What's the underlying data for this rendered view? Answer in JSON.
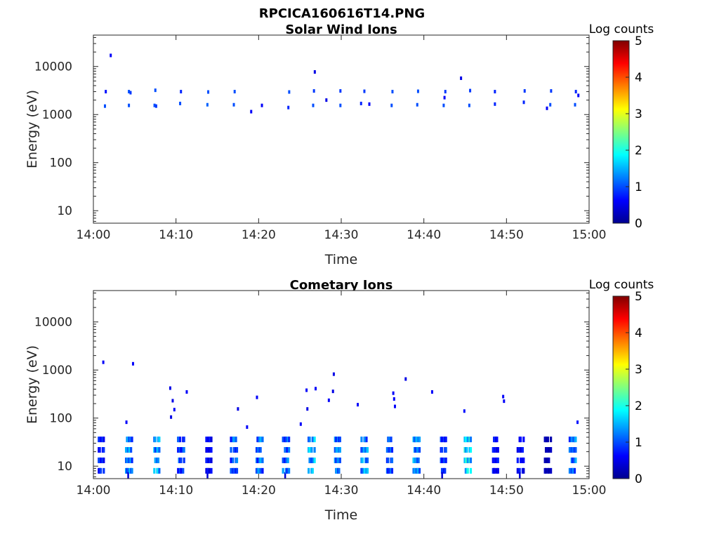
{
  "figure": {
    "title": "RPCICA160616T14.PNG"
  },
  "chart_data": [
    {
      "type": "heatmap",
      "title": "Solar Wind Ions",
      "xlabel": "Time",
      "ylabel": "Energy (eV)",
      "x_tick_labels": [
        "14:00",
        "14:10",
        "14:20",
        "14:30",
        "14:40",
        "14:50",
        "15:00"
      ],
      "x_range_minutes": [
        0,
        60
      ],
      "y_scale": "log",
      "y_range": [
        5.5,
        45000
      ],
      "y_ticks": [
        10,
        100,
        1000,
        10000
      ],
      "y_tick_labels": [
        "10",
        "100",
        "1000",
        "10000"
      ],
      "colorbar": {
        "label": "Log counts",
        "range": [
          0,
          5
        ],
        "tick_labels": [
          "0",
          "1",
          "2",
          "3",
          "4",
          "5"
        ],
        "colormap": "jet"
      },
      "points": [
        [
          1.4,
          1500,
          1
        ],
        [
          1.5,
          3000,
          0.7
        ],
        [
          2.1,
          17000,
          0.6
        ],
        [
          4.3,
          1550,
          1
        ],
        [
          4.3,
          3000,
          1
        ],
        [
          4.5,
          2850,
          0.9
        ],
        [
          7.4,
          1550,
          1
        ],
        [
          7.5,
          3200,
          1
        ],
        [
          7.6,
          1500,
          0.9
        ],
        [
          10.5,
          1700,
          1
        ],
        [
          10.6,
          3000,
          0.8
        ],
        [
          13.8,
          1600,
          1.1
        ],
        [
          13.9,
          2950,
          1
        ],
        [
          17.0,
          1600,
          1
        ],
        [
          17.1,
          3000,
          1
        ],
        [
          19.1,
          1150,
          0.6
        ],
        [
          20.4,
          1550,
          0.6
        ],
        [
          23.6,
          1400,
          0.8
        ],
        [
          23.7,
          2950,
          1
        ],
        [
          26.6,
          1550,
          1
        ],
        [
          26.7,
          3100,
          0.9
        ],
        [
          26.8,
          7700,
          0.5
        ],
        [
          28.2,
          2000,
          0.5
        ],
        [
          29.9,
          1550,
          1
        ],
        [
          29.9,
          3100,
          0.9
        ],
        [
          32.4,
          1700,
          0.8
        ],
        [
          32.8,
          3050,
          0.9
        ],
        [
          33.4,
          1650,
          0.6
        ],
        [
          36.1,
          1550,
          1
        ],
        [
          36.2,
          3000,
          1
        ],
        [
          39.2,
          1600,
          1
        ],
        [
          39.3,
          3050,
          1
        ],
        [
          42.4,
          1550,
          1
        ],
        [
          42.5,
          2250,
          0.6
        ],
        [
          42.6,
          3000,
          0.9
        ],
        [
          44.5,
          5700,
          0.5
        ],
        [
          45.5,
          1550,
          1
        ],
        [
          45.6,
          3150,
          0.9
        ],
        [
          48.6,
          1650,
          0.8
        ],
        [
          48.6,
          3000,
          0.8
        ],
        [
          52.1,
          1800,
          0.8
        ],
        [
          52.2,
          3100,
          0.9
        ],
        [
          54.9,
          1350,
          0.6
        ],
        [
          55.3,
          1600,
          1
        ],
        [
          55.4,
          3100,
          0.9
        ],
        [
          58.3,
          1600,
          1
        ],
        [
          58.4,
          3000,
          0.8
        ],
        [
          58.7,
          2500,
          0.6
        ]
      ]
    },
    {
      "type": "heatmap",
      "title": "Cometary Ions",
      "xlabel": "Time",
      "ylabel": "Energy (eV)",
      "x_tick_labels": [
        "14:00",
        "14:10",
        "14:20",
        "14:30",
        "14:40",
        "14:50",
        "15:00"
      ],
      "x_range_minutes": [
        0,
        60
      ],
      "y_scale": "log",
      "y_range": [
        5.5,
        45000
      ],
      "y_ticks": [
        10,
        100,
        1000,
        10000
      ],
      "y_tick_labels": [
        "10",
        "100",
        "1000",
        "10000"
      ],
      "colorbar": {
        "label": "Log counts",
        "range": [
          0,
          5
        ],
        "tick_labels": [
          "0",
          "1",
          "2",
          "3",
          "4",
          "5"
        ],
        "colormap": "jet"
      },
      "points": [
        [
          1.2,
          1450,
          0.6
        ],
        [
          4.0,
          82,
          0.6
        ],
        [
          4.8,
          1350,
          0.6
        ],
        [
          9.3,
          420,
          0.5
        ],
        [
          9.4,
          105,
          0.5
        ],
        [
          9.6,
          230,
          0.5
        ],
        [
          9.8,
          150,
          0.6
        ],
        [
          11.3,
          350,
          0.6
        ],
        [
          17.5,
          155,
          0.5
        ],
        [
          18.6,
          65,
          0.6
        ],
        [
          19.8,
          270,
          0.6
        ],
        [
          25.1,
          75,
          0.6
        ],
        [
          25.8,
          380,
          0.6
        ],
        [
          25.9,
          155,
          0.5
        ],
        [
          26.9,
          410,
          0.6
        ],
        [
          28.5,
          235,
          0.6
        ],
        [
          29.1,
          820,
          0.5
        ],
        [
          29.0,
          360,
          0.5
        ],
        [
          32.0,
          190,
          0.6
        ],
        [
          36.3,
          330,
          0.6
        ],
        [
          36.4,
          250,
          0.6
        ],
        [
          36.5,
          175,
          0.6
        ],
        [
          37.8,
          650,
          0.5
        ],
        [
          41.0,
          350,
          0.6
        ],
        [
          44.9,
          140,
          0.7
        ],
        [
          49.6,
          280,
          0.6
        ],
        [
          49.7,
          225,
          0.6
        ],
        [
          58.6,
          82,
          0.7
        ]
      ],
      "bursts_min": [
        1.0,
        4.3,
        7.6,
        10.6,
        13.9,
        17.0,
        20.1,
        23.3,
        26.4,
        29.6,
        32.8,
        35.9,
        39.1,
        42.3,
        45.3,
        48.6,
        51.7,
        55.0,
        58.0
      ],
      "burst_band_ev": [
        8,
        36
      ],
      "burst_peak_log_counts": [
        1.2,
        1.8,
        2.0,
        1.3,
        0.9,
        1.5,
        1.6,
        1.5,
        1.9,
        1.6,
        1.8,
        1.4,
        1.7,
        1.1,
        2.4,
        0.9,
        0.9,
        0.4,
        1.6
      ]
    }
  ]
}
